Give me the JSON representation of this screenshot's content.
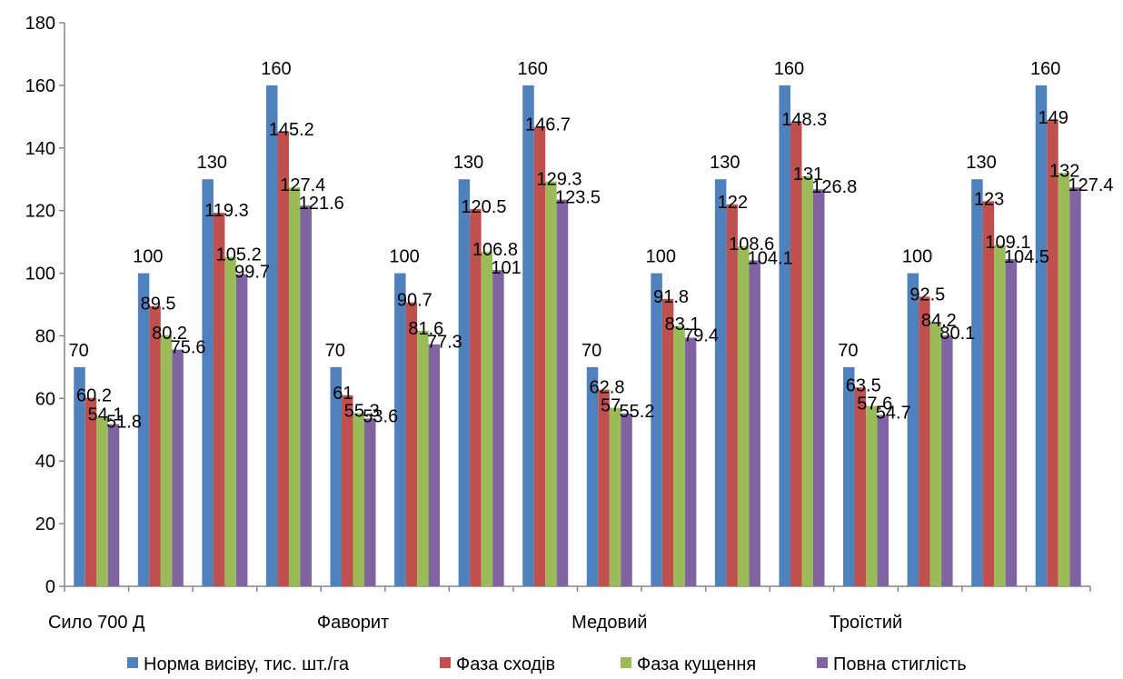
{
  "chart_data": {
    "type": "bar",
    "categories": [
      "Сило 700 Д",
      "",
      "",
      "",
      "Фаворит",
      "",
      "",
      "",
      "Медовий",
      "",
      "",
      "",
      "Троїстий",
      "",
      "",
      ""
    ],
    "series": [
      {
        "name": "Норма висіву, тис. шт./га",
        "color": "#4F81BD",
        "values": [
          70,
          100,
          130,
          160,
          70,
          100,
          130,
          160,
          70,
          100,
          130,
          160,
          70,
          100,
          130,
          160
        ]
      },
      {
        "name": "Фаза сходів",
        "color": "#C0504D",
        "values": [
          60.2,
          89.5,
          119.3,
          145.2,
          61,
          90.7,
          120.5,
          146.7,
          62.8,
          91.8,
          122,
          148.3,
          63.5,
          92.5,
          123,
          149
        ]
      },
      {
        "name": "Фаза кущення",
        "color": "#9BBB59",
        "values": [
          54.1,
          80.2,
          105.2,
          127.4,
          55.3,
          81.6,
          106.8,
          129.3,
          57,
          83.1,
          108.6,
          131,
          57.6,
          84.2,
          109.1,
          132
        ]
      },
      {
        "name": "Повна стиглість",
        "color": "#8064A2",
        "values": [
          51.8,
          75.6,
          99.7,
          121.6,
          53.6,
          77.3,
          101,
          123.5,
          55.2,
          79.4,
          104.1,
          126.8,
          54.7,
          80.1,
          104.5,
          127.4
        ]
      }
    ],
    "ylim": [
      0,
      180
    ],
    "yticks": [
      0,
      20,
      40,
      60,
      80,
      100,
      120,
      140,
      160,
      180
    ],
    "grid": false,
    "legend": "bottom",
    "data_labels": true
  }
}
